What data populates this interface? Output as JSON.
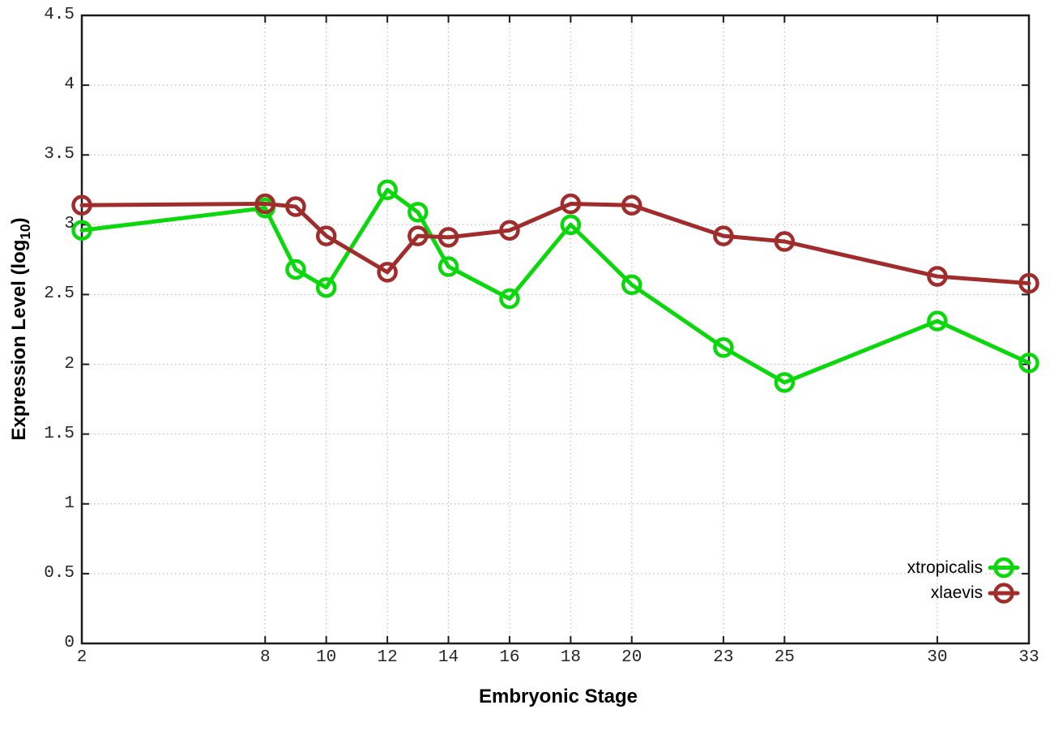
{
  "chart_data": {
    "type": "line",
    "title": "",
    "xlabel": "Embryonic Stage",
    "ylabel": "Expression Level (log10)",
    "ylabel_parts": {
      "main": "Expression Level (log",
      "sub": "10",
      "close": ")"
    },
    "xlim": [
      2,
      33
    ],
    "ylim": [
      0,
      4.5
    ],
    "x_ticks": [
      2,
      8,
      10,
      12,
      14,
      16,
      18,
      20,
      23,
      25,
      30,
      33
    ],
    "y_ticks": [
      0,
      0.5,
      1,
      1.5,
      2,
      2.5,
      3,
      3.5,
      4,
      4.5
    ],
    "grid": true,
    "grid_style": "dotted",
    "legend_position": "bottom-right-inside",
    "marker": "open-circle",
    "x": [
      2,
      8,
      9,
      10,
      12,
      13,
      14,
      16,
      18,
      20,
      23,
      25,
      30,
      33
    ],
    "series": [
      {
        "name": "xtropicalis",
        "color": "#0bd80b",
        "values": [
          2.96,
          3.12,
          2.68,
          2.55,
          3.25,
          3.09,
          2.7,
          2.47,
          3.0,
          2.57,
          2.12,
          1.87,
          2.31,
          2.01
        ]
      },
      {
        "name": "xlaevis",
        "color": "#a02c2c",
        "values": [
          3.14,
          3.15,
          3.13,
          2.92,
          2.66,
          2.92,
          2.91,
          2.96,
          3.15,
          3.14,
          2.92,
          2.88,
          2.63,
          2.58
        ]
      }
    ],
    "colors": {
      "border": "#1c1c1c",
      "grid": "#bdbdbd",
      "tick_text": "#262626"
    }
  }
}
